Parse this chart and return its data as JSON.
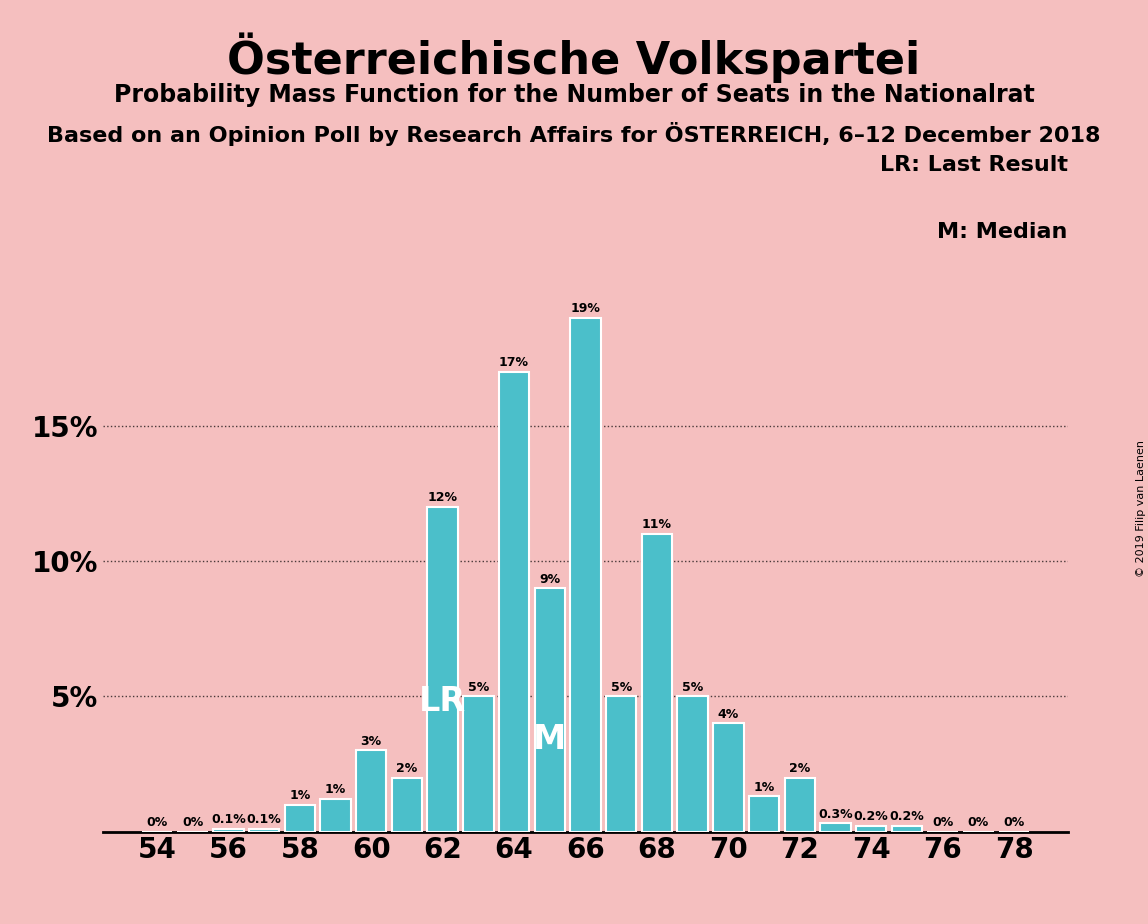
{
  "title": "Österreichische Volkspartei",
  "subtitle1": "Probability Mass Function for the Number of Seats in the Nationalrat",
  "subtitle2": "Based on an Opinion Poll by Research Affairs for ÖSTERREICH, 6–12 December 2018",
  "copyright": "© 2019 Filip van Laenen",
  "legend_lr": "LR: Last Result",
  "legend_m": "M: Median",
  "seats": [
    54,
    55,
    56,
    57,
    58,
    59,
    60,
    61,
    62,
    63,
    64,
    65,
    66,
    67,
    68,
    69,
    70,
    71,
    72,
    73,
    74,
    75,
    76,
    77,
    78
  ],
  "probabilities": [
    0.0,
    0.0,
    0.1,
    0.1,
    1.0,
    1.2,
    3.0,
    2.0,
    12.0,
    5.0,
    17.0,
    9.0,
    19.0,
    5.0,
    11.0,
    5.0,
    4.0,
    1.3,
    2.0,
    0.3,
    0.2,
    0.2,
    0.0,
    0.0,
    0.0
  ],
  "bar_color": "#4BBFCA",
  "background_color": "#F5BFBF",
  "lr_seat": 62,
  "median_seat": 65,
  "yticks": [
    5,
    10,
    15
  ],
  "ylim": [
    0,
    20.5
  ],
  "xtick_seats": [
    54,
    56,
    58,
    60,
    62,
    64,
    66,
    68,
    70,
    72,
    74,
    76,
    78
  ],
  "label_fontsize": 9,
  "tick_fontsize": 20,
  "title_fontsize": 32,
  "sub1_fontsize": 17,
  "sub2_fontsize": 16
}
